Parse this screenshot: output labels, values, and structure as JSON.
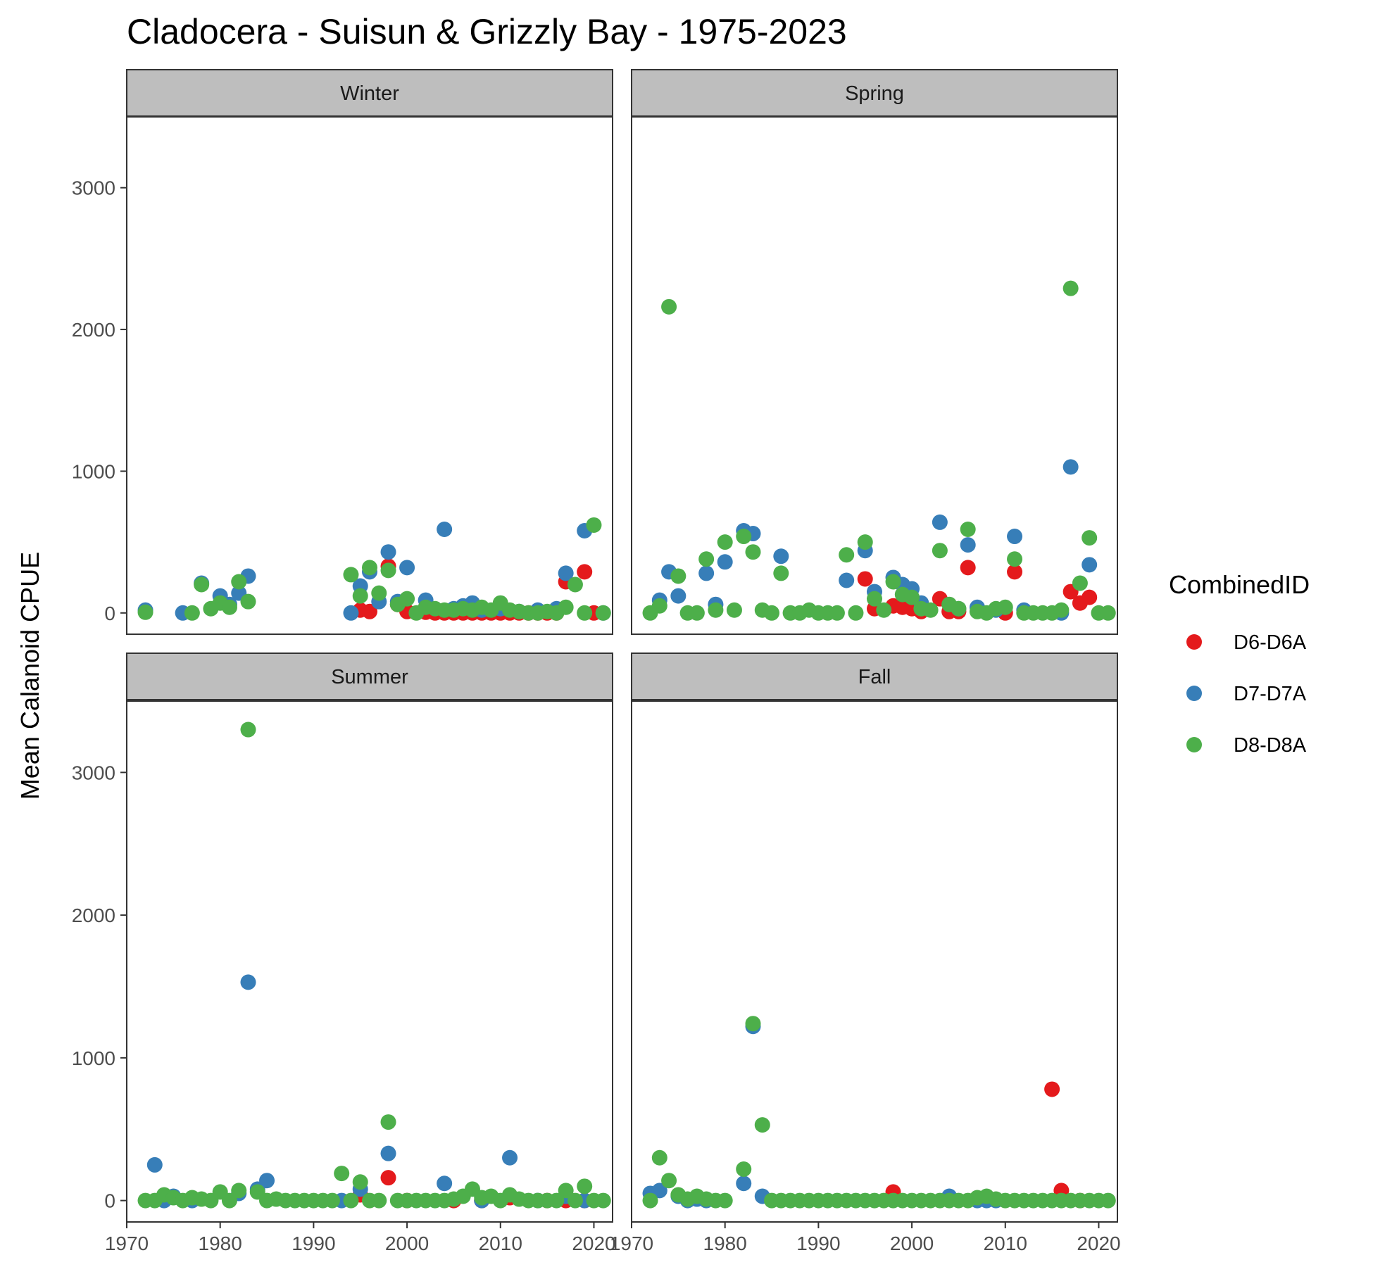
{
  "chart_data": {
    "type": "scatter",
    "title": "Cladocera - Suisun & Grizzly Bay - 1975-2023",
    "xlabel": "",
    "ylabel": "Mean Calanoid CPUE",
    "xlim": [
      1970,
      2022
    ],
    "ylim": [
      -150,
      3500
    ],
    "x_ticks": [
      1970,
      1980,
      1990,
      2000,
      2010,
      2020
    ],
    "y_ticks": [
      0,
      1000,
      2000,
      3000
    ],
    "grid": false,
    "legend": {
      "title": "CombinedID",
      "position": "right",
      "entries": [
        {
          "name": "D6-D6A",
          "color": "#E41A1C"
        },
        {
          "name": "D7-D7A",
          "color": "#377EB8"
        },
        {
          "name": "D8-D8A",
          "color": "#4DAF4A"
        }
      ]
    },
    "panels": [
      {
        "label": "Winter",
        "series": [
          {
            "name": "D6-D6A",
            "x": [
              1995,
              1996,
              1998,
              1999,
              2000,
              2002,
              2003,
              2004,
              2005,
              2006,
              2007,
              2008,
              2009,
              2010,
              2011,
              2012,
              2013,
              2014,
              2015,
              2016,
              2017,
              2019,
              2020
            ],
            "y": [
              20,
              10,
              330,
              60,
              10,
              5,
              0,
              0,
              0,
              0,
              0,
              0,
              0,
              0,
              0,
              0,
              0,
              0,
              0,
              0,
              220,
              290,
              0
            ]
          },
          {
            "name": "D7-D7A",
            "x": [
              1972,
              1976,
              1978,
              1980,
              1981,
              1982,
              1983,
              1994,
              1995,
              1996,
              1997,
              1998,
              1999,
              2000,
              2002,
              2004,
              2005,
              2006,
              2007,
              2008,
              2010,
              2012,
              2014,
              2016,
              2017,
              2019,
              2021
            ],
            "y": [
              20,
              0,
              210,
              120,
              60,
              140,
              260,
              0,
              190,
              290,
              80,
              430,
              80,
              320,
              90,
              590,
              30,
              50,
              70,
              20,
              30,
              10,
              20,
              30,
              280,
              580,
              0
            ]
          },
          {
            "name": "D8-D8A",
            "x": [
              1972,
              1977,
              1978,
              1979,
              1980,
              1981,
              1982,
              1983,
              1994,
              1995,
              1996,
              1997,
              1998,
              1999,
              2000,
              2001,
              2002,
              2003,
              2004,
              2005,
              2006,
              2007,
              2008,
              2009,
              2010,
              2011,
              2012,
              2013,
              2014,
              2015,
              2016,
              2017,
              2018,
              2019,
              2020,
              2021
            ],
            "y": [
              5,
              0,
              200,
              30,
              70,
              40,
              220,
              80,
              270,
              120,
              320,
              140,
              300,
              60,
              100,
              0,
              40,
              30,
              20,
              20,
              30,
              20,
              40,
              20,
              70,
              20,
              10,
              0,
              0,
              10,
              0,
              40,
              200,
              0,
              620,
              0
            ]
          }
        ]
      },
      {
        "label": "Spring",
        "series": [
          {
            "name": "D6-D6A",
            "x": [
              1995,
              1996,
              1998,
              1999,
              2000,
              2001,
              2003,
              2004,
              2005,
              2006,
              2010,
              2011,
              2017,
              2018,
              2019
            ],
            "y": [
              240,
              30,
              50,
              40,
              30,
              10,
              100,
              10,
              10,
              320,
              0,
              290,
              150,
              70,
              110
            ]
          },
          {
            "name": "D7-D7A",
            "x": [
              1973,
              1974,
              1975,
              1978,
              1979,
              1980,
              1982,
              1983,
              1986,
              1993,
              1995,
              1996,
              1998,
              1999,
              2000,
              2001,
              2003,
              2005,
              2006,
              2007,
              2009,
              2011,
              2012,
              2016,
              2017,
              2019
            ],
            "y": [
              90,
              290,
              120,
              280,
              60,
              360,
              580,
              560,
              400,
              230,
              440,
              150,
              250,
              200,
              170,
              70,
              640,
              30,
              480,
              40,
              20,
              540,
              20,
              0,
              1030,
              340
            ]
          },
          {
            "name": "D8-D8A",
            "x": [
              1972,
              1973,
              1974,
              1975,
              1976,
              1977,
              1978,
              1979,
              1980,
              1981,
              1982,
              1983,
              1984,
              1985,
              1986,
              1987,
              1988,
              1989,
              1990,
              1991,
              1992,
              1994,
              1993,
              1995,
              1996,
              1997,
              1998,
              1999,
              2000,
              2001,
              2002,
              2003,
              2004,
              2005,
              2006,
              2007,
              2008,
              2009,
              2010,
              2011,
              2012,
              2013,
              2014,
              2015,
              2016,
              2017,
              2018,
              2019,
              2020,
              2021
            ],
            "y": [
              0,
              50,
              2160,
              260,
              0,
              0,
              380,
              20,
              500,
              20,
              540,
              430,
              20,
              0,
              280,
              0,
              0,
              20,
              0,
              0,
              0,
              0,
              410,
              500,
              100,
              20,
              220,
              130,
              110,
              30,
              20,
              440,
              60,
              30,
              590,
              10,
              0,
              30,
              40,
              380,
              0,
              0,
              0,
              0,
              20,
              2290,
              210,
              530,
              0,
              0
            ]
          }
        ]
      },
      {
        "label": "Summer",
        "series": [
          {
            "name": "D6-D6A",
            "x": [
              1995,
              1998,
              2000,
              2005,
              2008,
              2011,
              2015,
              2017,
              2019
            ],
            "y": [
              40,
              160,
              0,
              0,
              0,
              20,
              0,
              0,
              0
            ]
          },
          {
            "name": "D7-D7A",
            "x": [
              1973,
              1974,
              1975,
              1977,
              1982,
              1983,
              1984,
              1985,
              1993,
              1995,
              1998,
              2004,
              2008,
              2011,
              2014,
              2017,
              2019
            ],
            "y": [
              250,
              0,
              30,
              0,
              50,
              1530,
              80,
              140,
              0,
              80,
              330,
              120,
              0,
              300,
              0,
              30,
              0
            ]
          },
          {
            "name": "D8-D8A",
            "x": [
              1972,
              1973,
              1974,
              1975,
              1976,
              1977,
              1978,
              1979,
              1980,
              1981,
              1982,
              1983,
              1984,
              1985,
              1986,
              1987,
              1988,
              1989,
              1990,
              1991,
              1992,
              1993,
              1994,
              1995,
              1996,
              1997,
              1998,
              1999,
              2000,
              2001,
              2002,
              2003,
              2004,
              2005,
              2006,
              2007,
              2008,
              2009,
              2010,
              2011,
              2012,
              2013,
              2014,
              2015,
              2016,
              2017,
              2018,
              2019,
              2020,
              2021
            ],
            "y": [
              0,
              0,
              40,
              20,
              0,
              20,
              10,
              0,
              60,
              0,
              70,
              3300,
              60,
              0,
              10,
              0,
              0,
              0,
              0,
              0,
              0,
              190,
              0,
              130,
              0,
              0,
              550,
              0,
              0,
              0,
              0,
              0,
              0,
              10,
              30,
              80,
              20,
              30,
              0,
              40,
              10,
              0,
              0,
              0,
              0,
              70,
              0,
              100,
              0,
              0
            ]
          }
        ]
      },
      {
        "label": "Fall",
        "series": [
          {
            "name": "D6-D6A",
            "x": [
              1998,
              2015,
              2016,
              2018
            ],
            "y": [
              60,
              780,
              70,
              0
            ]
          },
          {
            "name": "D7-D7A",
            "x": [
              1972,
              1973,
              1975,
              1976,
              1977,
              1978,
              1982,
              1983,
              1984,
              2004,
              2007,
              2008,
              2009
            ],
            "y": [
              50,
              70,
              30,
              0,
              10,
              0,
              120,
              1220,
              30,
              30,
              0,
              0,
              0
            ]
          },
          {
            "name": "D8-D8A",
            "x": [
              1972,
              1973,
              1974,
              1975,
              1976,
              1977,
              1978,
              1979,
              1980,
              1982,
              1983,
              1984,
              1985,
              1986,
              1987,
              1988,
              1989,
              1990,
              1991,
              1992,
              1993,
              1994,
              1995,
              1996,
              1997,
              1998,
              1999,
              2000,
              2001,
              2002,
              2003,
              2004,
              2005,
              2006,
              2007,
              2008,
              2009,
              2010,
              2011,
              2012,
              2013,
              2014,
              2015,
              2016,
              2017,
              2018,
              2019,
              2020,
              2021
            ],
            "y": [
              0,
              300,
              140,
              40,
              10,
              30,
              10,
              0,
              0,
              220,
              1240,
              530,
              0,
              0,
              0,
              0,
              0,
              0,
              0,
              0,
              0,
              0,
              0,
              0,
              0,
              0,
              0,
              0,
              0,
              0,
              0,
              0,
              0,
              0,
              20,
              30,
              10,
              0,
              0,
              0,
              0,
              0,
              0,
              0,
              0,
              0,
              0,
              0,
              0
            ]
          }
        ]
      }
    ]
  }
}
